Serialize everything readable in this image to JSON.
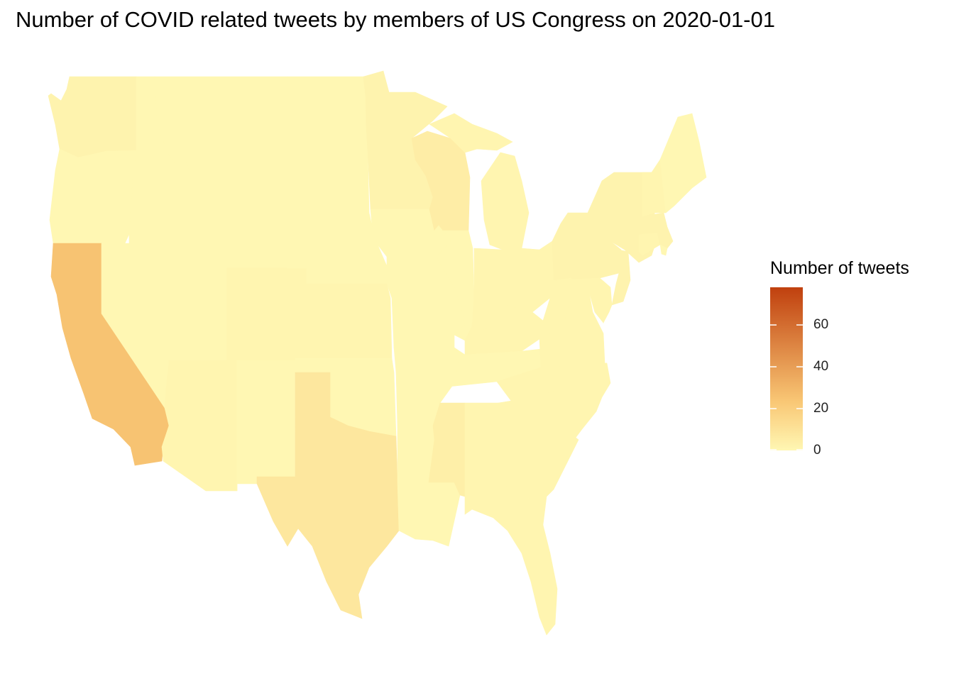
{
  "title": "Number of COVID related tweets by members of US Congress on  2020-01-01",
  "legend": {
    "title": "Number of tweets",
    "colors": {
      "low": "#fff7b3",
      "mid": "#f9c775",
      "high": "#c0400e"
    },
    "min": 0,
    "max": 78,
    "ticks": [
      {
        "value": 0,
        "label": "0"
      },
      {
        "value": 20,
        "label": "20"
      },
      {
        "value": 40,
        "label": "40"
      },
      {
        "value": 60,
        "label": "60"
      }
    ]
  },
  "states": [
    {
      "name": "washington",
      "tweets": 2
    },
    {
      "name": "oregon",
      "tweets": 0
    },
    {
      "name": "california",
      "tweets": 25
    },
    {
      "name": "nevada",
      "tweets": 0
    },
    {
      "name": "idaho",
      "tweets": 0
    },
    {
      "name": "montana",
      "tweets": 0
    },
    {
      "name": "wyoming",
      "tweets": 0
    },
    {
      "name": "utah",
      "tweets": 0
    },
    {
      "name": "arizona",
      "tweets": 1
    },
    {
      "name": "colorado",
      "tweets": 1
    },
    {
      "name": "new mexico",
      "tweets": 0
    },
    {
      "name": "north dakota",
      "tweets": 0
    },
    {
      "name": "south dakota",
      "tweets": 0
    },
    {
      "name": "nebraska",
      "tweets": 0
    },
    {
      "name": "kansas",
      "tweets": 1
    },
    {
      "name": "oklahoma",
      "tweets": 0
    },
    {
      "name": "texas",
      "tweets": 8
    },
    {
      "name": "minnesota",
      "tweets": 2
    },
    {
      "name": "iowa",
      "tweets": 0
    },
    {
      "name": "missouri",
      "tweets": 0
    },
    {
      "name": "arkansas",
      "tweets": 0
    },
    {
      "name": "louisiana",
      "tweets": 0
    },
    {
      "name": "wisconsin",
      "tweets": 5
    },
    {
      "name": "illinois",
      "tweets": 0
    },
    {
      "name": "michigan",
      "tweets": 1
    },
    {
      "name": "indiana",
      "tweets": 1
    },
    {
      "name": "ohio",
      "tweets": 1
    },
    {
      "name": "kentucky",
      "tweets": 1
    },
    {
      "name": "tennessee",
      "tweets": 0
    },
    {
      "name": "mississippi",
      "tweets": 4
    },
    {
      "name": "alabama",
      "tweets": 1
    },
    {
      "name": "georgia",
      "tweets": 1
    },
    {
      "name": "florida",
      "tweets": 1
    },
    {
      "name": "south carolina",
      "tweets": 1
    },
    {
      "name": "north carolina",
      "tweets": 1
    },
    {
      "name": "virginia",
      "tweets": 1
    },
    {
      "name": "west virginia",
      "tweets": 1
    },
    {
      "name": "pennsylvania",
      "tweets": 2
    },
    {
      "name": "new york",
      "tweets": 2
    },
    {
      "name": "new jersey",
      "tweets": 2
    },
    {
      "name": "maryland",
      "tweets": 1
    },
    {
      "name": "delaware",
      "tweets": 1
    },
    {
      "name": "connecticut",
      "tweets": 1
    },
    {
      "name": "massachusetts",
      "tweets": 2
    },
    {
      "name": "rhode island",
      "tweets": 0
    },
    {
      "name": "vermont",
      "tweets": 1
    },
    {
      "name": "new hampshire",
      "tweets": 1
    },
    {
      "name": "maine",
      "tweets": 0
    }
  ]
}
